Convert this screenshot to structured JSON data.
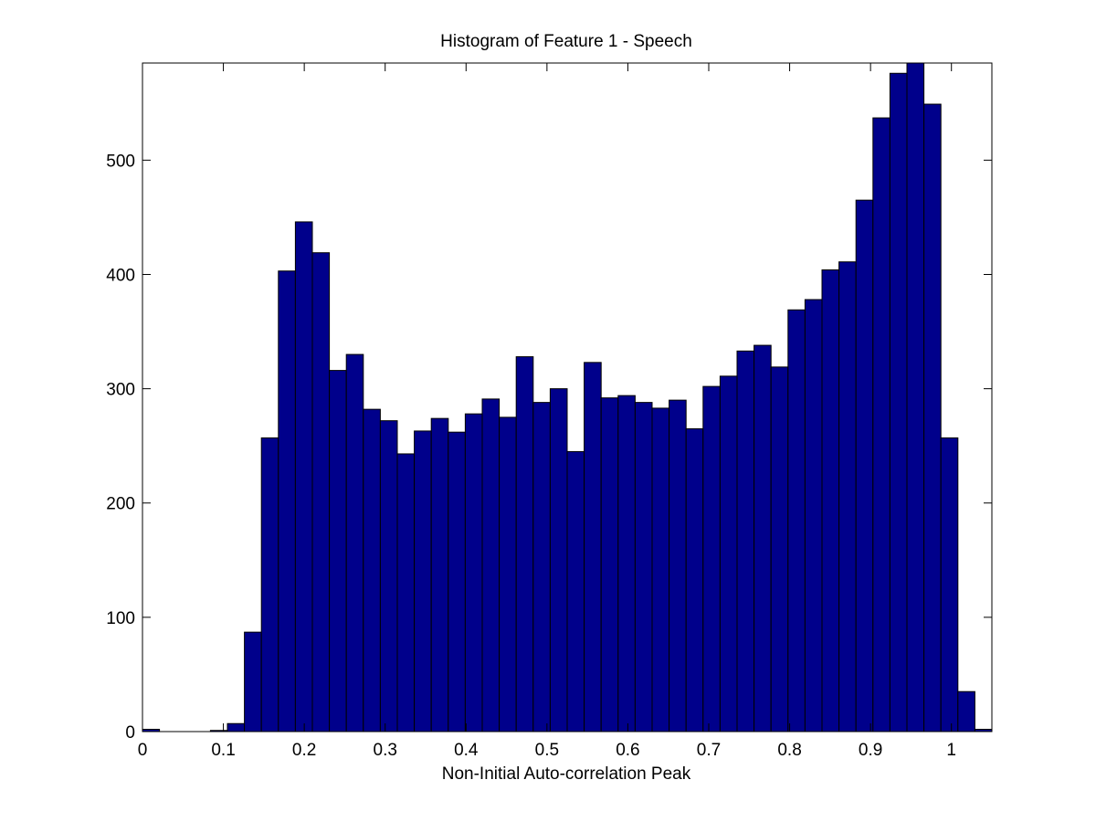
{
  "chart_data": {
    "type": "bar",
    "title": "Histogram of Feature 1 - Speech",
    "xlabel": "Non-Initial Auto-correlation Peak",
    "ylabel": "",
    "xlim": [
      0,
      1.05
    ],
    "ylim": [
      0,
      585
    ],
    "bin_width": 0.021,
    "bin_centers": [
      0.0105,
      0.0315,
      0.0525,
      0.0735,
      0.0945,
      0.1155,
      0.1365,
      0.1575,
      0.1785,
      0.1995,
      0.2205,
      0.2415,
      0.2625,
      0.2835,
      0.3045,
      0.3255,
      0.3465,
      0.3675,
      0.3885,
      0.4095,
      0.4305,
      0.4515,
      0.4725,
      0.4935,
      0.5145,
      0.5355,
      0.5565,
      0.5775,
      0.5985,
      0.6195,
      0.6405,
      0.6615,
      0.6825,
      0.7035,
      0.7245,
      0.7455,
      0.7665,
      0.7875,
      0.8085,
      0.8295,
      0.8505,
      0.8715,
      0.8925,
      0.9135,
      0.9345,
      0.9555,
      0.9765,
      0.9975,
      1.0185,
      1.0395
    ],
    "values": [
      2,
      0,
      0,
      0,
      1,
      7,
      87,
      257,
      403,
      446,
      419,
      316,
      330,
      282,
      272,
      243,
      263,
      274,
      262,
      278,
      291,
      275,
      328,
      288,
      300,
      245,
      323,
      292,
      294,
      288,
      283,
      290,
      265,
      302,
      311,
      333,
      338,
      319,
      369,
      378,
      404,
      411,
      465,
      537,
      576,
      585,
      549,
      257,
      35,
      2
    ],
    "x_ticks": [
      0,
      0.1,
      0.2,
      0.3,
      0.4,
      0.5,
      0.6,
      0.7,
      0.8,
      0.9,
      1
    ],
    "x_tick_labels": [
      "0",
      "0.1",
      "0.2",
      "0.3",
      "0.4",
      "0.5",
      "0.6",
      "0.7",
      "0.8",
      "0.9",
      "1"
    ],
    "y_ticks": [
      0,
      100,
      200,
      300,
      400,
      500
    ],
    "y_tick_labels": [
      "0",
      "100",
      "200",
      "300",
      "400",
      "500"
    ],
    "grid": false,
    "bar_color": "#00008b",
    "edge_color": "#000000"
  }
}
